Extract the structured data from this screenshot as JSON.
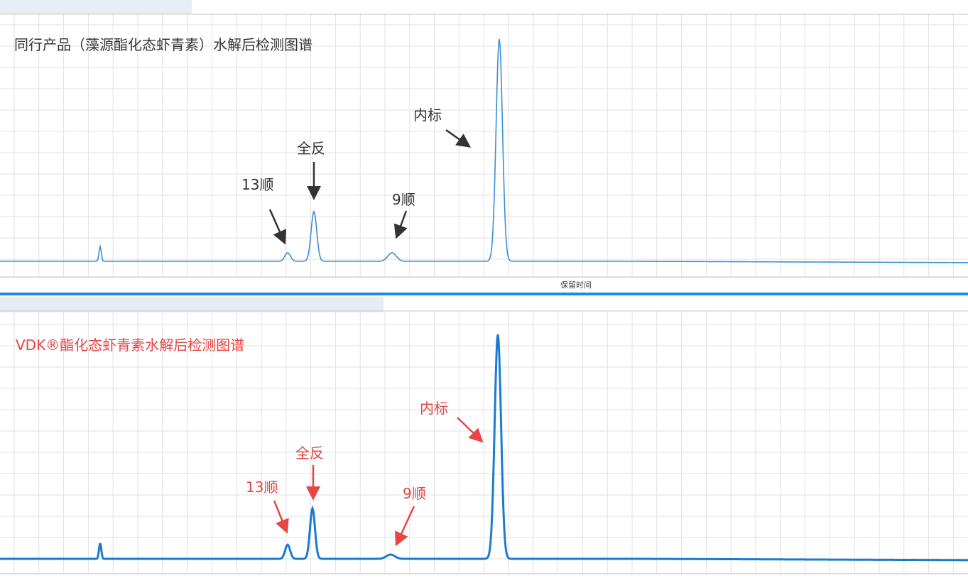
{
  "top": {
    "title": "同行产品（藻源酯化态虾青素）水解后检测图谱",
    "annotations": [
      "13顺",
      "全反",
      "9顺",
      "内标"
    ]
  },
  "x_axis_label": "保留时间",
  "bottom": {
    "title": "VDK®酯化态虾青素水解后检测图谱",
    "annotations": [
      "13顺",
      "全反",
      "9顺",
      "内标"
    ]
  }
}
